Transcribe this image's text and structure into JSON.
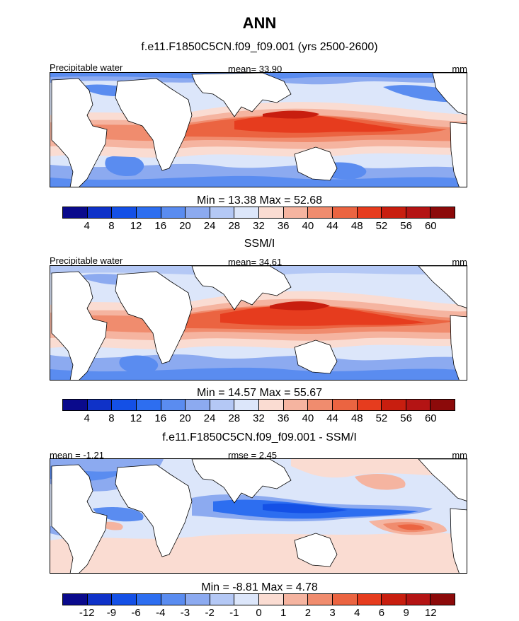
{
  "figure": {
    "title": "ANN"
  },
  "panels": [
    {
      "header": "f.e11.F1850C5CN.f09_f09.001 (yrs 2500-2600)",
      "left_label": "Precipitable water",
      "center_label": "mean=  33.90",
      "units": "mm",
      "stats": "Min =  13.38 Max =  52.68",
      "min": 13.38,
      "max": 52.68,
      "mean": 33.9
    },
    {
      "header": "SSM/I",
      "left_label": "Precipitable water",
      "center_label": "mean=  34.61",
      "units": "mm",
      "stats": "Min =  14.57 Max =  55.67",
      "min": 14.57,
      "max": 55.67,
      "mean": 34.61
    },
    {
      "header": "f.e11.F1850C5CN.f09_f09.001 - SSM/I",
      "left_label": "mean =  -1.21",
      "center_label": "rmse =   2.45",
      "units": "mm",
      "stats": "Min =  -8.81 Max =   4.78",
      "min": -8.81,
      "max": 4.78,
      "mean": -1.21,
      "rmse": 2.45
    }
  ],
  "colorbar_abs": {
    "ticks": [
      "4",
      "8",
      "12",
      "16",
      "20",
      "24",
      "28",
      "32",
      "36",
      "40",
      "44",
      "48",
      "52",
      "56",
      "60"
    ],
    "colors": [
      "#0a0a8c",
      "#0f32c8",
      "#1450e6",
      "#2d6ef0",
      "#5a8cf0",
      "#8caaf0",
      "#b4c8f5",
      "#dce6fa",
      "#fadcd2",
      "#f5b4a0",
      "#f08c6e",
      "#eb6441",
      "#e63c1e",
      "#c81e0f",
      "#b41414",
      "#8c0a0a"
    ]
  },
  "colorbar_diff": {
    "ticks": [
      "-12",
      "-9",
      "-6",
      "-4",
      "-3",
      "-2",
      "-1",
      "0",
      "1",
      "2",
      "3",
      "4",
      "6",
      "9",
      "12"
    ],
    "colors": [
      "#0a0a8c",
      "#0f32c8",
      "#1450e6",
      "#2d6ef0",
      "#5a8cf0",
      "#8caaf0",
      "#b4c8f5",
      "#dce6fa",
      "#fadcd2",
      "#f5b4a0",
      "#f08c6e",
      "#eb6441",
      "#e63c1e",
      "#c81e0f",
      "#b41414",
      "#8c0a0a"
    ]
  }
}
